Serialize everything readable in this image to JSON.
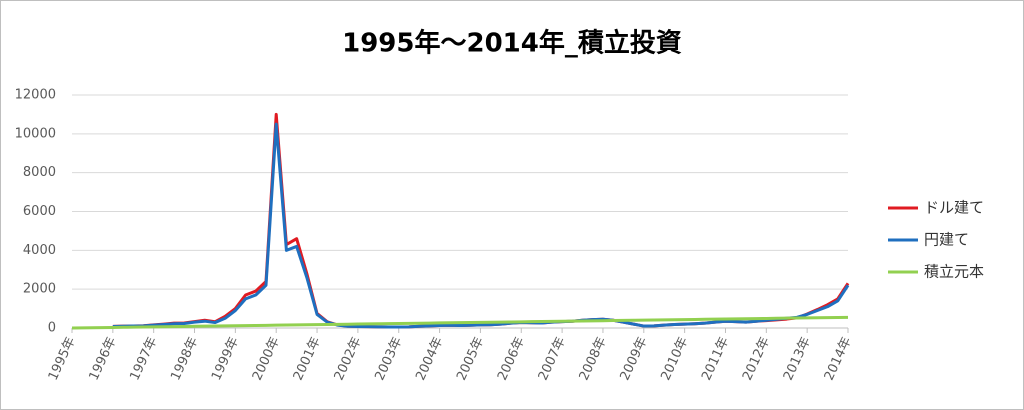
{
  "chart_data": {
    "type": "line",
    "title": "1995年～2014年_積立投資",
    "x": [
      1995,
      1995.25,
      1995.5,
      1995.75,
      1996,
      1996.25,
      1996.5,
      1996.75,
      1997,
      1997.25,
      1997.5,
      1997.75,
      1998,
      1998.25,
      1998.5,
      1998.75,
      1999,
      1999.25,
      1999.5,
      1999.75,
      2000,
      2000.25,
      2000.5,
      2000.75,
      2001,
      2001.25,
      2001.5,
      2001.75,
      2002,
      2002.25,
      2002.5,
      2002.75,
      2003,
      2003.25,
      2003.5,
      2003.75,
      2004,
      2004.25,
      2004.5,
      2004.75,
      2005,
      2005.25,
      2005.5,
      2005.75,
      2006,
      2006.25,
      2006.5,
      2006.75,
      2007,
      2007.25,
      2007.5,
      2007.75,
      2008,
      2008.25,
      2008.5,
      2008.75,
      2009,
      2009.25,
      2009.5,
      2009.75,
      2010,
      2010.25,
      2010.5,
      2010.75,
      2011,
      2011.25,
      2011.5,
      2011.75,
      2012,
      2012.25,
      2012.5,
      2012.75,
      2013,
      2013.25,
      2013.5,
      2013.75,
      2014
    ],
    "series": [
      {
        "name": "ドル建て",
        "color": "#e01b22",
        "values": [
          null,
          null,
          null,
          null,
          85,
          95,
          105,
          115,
          160,
          200,
          250,
          260,
          330,
          400,
          320,
          600,
          1000,
          1700,
          1900,
          2400,
          11000,
          4300,
          4600,
          2800,
          750,
          320,
          160,
          95,
          80,
          70,
          60,
          50,
          50,
          60,
          90,
          110,
          130,
          140,
          130,
          140,
          160,
          170,
          200,
          250,
          280,
          270,
          260,
          300,
          330,
          350,
          400,
          430,
          450,
          400,
          300,
          200,
          100,
          110,
          150,
          180,
          200,
          220,
          250,
          300,
          350,
          330,
          300,
          350,
          380,
          420,
          460,
          520,
          720,
          950,
          1200,
          1500,
          2300
        ]
      },
      {
        "name": "円建て",
        "color": "#1f6fbf",
        "values": [
          null,
          null,
          null,
          null,
          80,
          90,
          100,
          110,
          150,
          180,
          220,
          230,
          300,
          350,
          280,
          500,
          900,
          1500,
          1700,
          2200,
          10500,
          4000,
          4200,
          2600,
          700,
          300,
          150,
          90,
          80,
          70,
          60,
          50,
          50,
          60,
          90,
          110,
          130,
          140,
          130,
          140,
          160,
          170,
          200,
          250,
          280,
          270,
          260,
          300,
          330,
          350,
          400,
          430,
          450,
          400,
          300,
          200,
          100,
          110,
          150,
          180,
          200,
          220,
          250,
          300,
          350,
          330,
          300,
          350,
          400,
          450,
          500,
          550,
          700,
          900,
          1100,
          1400,
          2200
        ]
      },
      {
        "name": "積立元本",
        "color": "#92d050",
        "values": [
          0,
          7,
          14,
          22,
          29,
          36,
          43,
          51,
          58,
          65,
          72,
          80,
          87,
          94,
          101,
          109,
          116,
          123,
          130,
          138,
          145,
          152,
          159,
          166,
          174,
          181,
          188,
          195,
          203,
          210,
          217,
          224,
          232,
          239,
          246,
          253,
          261,
          268,
          275,
          282,
          289,
          297,
          304,
          311,
          318,
          326,
          333,
          340,
          347,
          355,
          362,
          369,
          376,
          384,
          391,
          398,
          405,
          413,
          420,
          427,
          434,
          441,
          449,
          456,
          463,
          470,
          478,
          485,
          492,
          499,
          507,
          514,
          521,
          528,
          535,
          543,
          550
        ]
      }
    ],
    "xlim": [
      1995,
      2014
    ],
    "xticks": [
      {
        "value": 1995,
        "label": "1995年"
      },
      {
        "value": 1996,
        "label": "1996年"
      },
      {
        "value": 1997,
        "label": "1997年"
      },
      {
        "value": 1998,
        "label": "1998年"
      },
      {
        "value": 1999,
        "label": "1999年"
      },
      {
        "value": 2000,
        "label": "2000年"
      },
      {
        "value": 2001,
        "label": "2001年"
      },
      {
        "value": 2002,
        "label": "2002年"
      },
      {
        "value": 2003,
        "label": "2003年"
      },
      {
        "value": 2004,
        "label": "2004年"
      },
      {
        "value": 2005,
        "label": "2005年"
      },
      {
        "value": 2006,
        "label": "2006年"
      },
      {
        "value": 2007,
        "label": "2007年"
      },
      {
        "value": 2008,
        "label": "2008年"
      },
      {
        "value": 2009,
        "label": "2009年"
      },
      {
        "value": 2010,
        "label": "2010年"
      },
      {
        "value": 2011,
        "label": "2011年"
      },
      {
        "value": 2012,
        "label": "2012年"
      },
      {
        "value": 2013,
        "label": "2013年"
      },
      {
        "value": 2014,
        "label": "2014年"
      }
    ],
    "ylim": [
      0,
      12000
    ],
    "yticks": [
      0,
      2000,
      4000,
      6000,
      8000,
      10000,
      12000
    ],
    "grid": true,
    "legend": "right"
  }
}
